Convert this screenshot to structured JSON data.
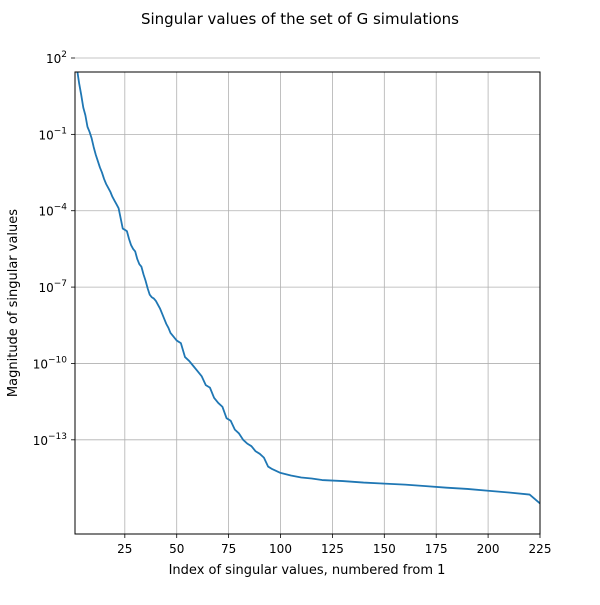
{
  "chart_data": {
    "type": "line",
    "title": "Singular values of the set of G simulations",
    "xlabel": "Index of singular values, numbered from 1",
    "ylabel": "Magnitude of singular values",
    "xlim": [
      1,
      225
    ],
    "ylim_log10": [
      -16.7,
      1.45
    ],
    "y_scale": "log",
    "grid": true,
    "line_color": "#1f77b4",
    "x_ticks": [
      25,
      50,
      75,
      100,
      125,
      150,
      175,
      200,
      225
    ],
    "y_ticks": [
      {
        "exp": 2,
        "base": "10",
        "sup": "2"
      },
      {
        "exp": -1,
        "base": "10",
        "sup": "−1"
      },
      {
        "exp": -4,
        "base": "10",
        "sup": "−4"
      },
      {
        "exp": -7,
        "base": "10",
        "sup": "−7"
      },
      {
        "exp": -10,
        "base": "10",
        "sup": "−10"
      },
      {
        "exp": -13,
        "base": "10",
        "sup": "−13"
      }
    ],
    "series": [
      {
        "x": [
          1,
          2,
          3,
          4,
          5,
          6,
          7,
          8,
          9,
          10,
          11,
          12,
          13,
          14,
          15,
          16,
          17,
          18,
          19,
          20,
          21,
          22,
          23,
          24,
          25,
          26,
          27,
          28,
          29,
          30,
          31,
          32,
          33,
          34,
          35,
          36,
          37,
          38,
          39,
          40,
          41,
          42,
          43,
          44,
          45,
          46,
          47,
          48,
          50,
          52,
          54,
          56,
          58,
          60,
          62,
          64,
          66,
          68,
          70,
          72,
          74,
          76,
          78,
          80,
          82,
          84,
          86,
          88,
          90,
          92,
          94,
          96,
          100,
          105,
          110,
          115,
          120,
          125,
          130,
          140,
          150,
          160,
          170,
          180,
          190,
          200,
          210,
          220,
          225
        ],
        "log10_y": [
          2.1,
          1.55,
          1.0,
          0.55,
          0.05,
          -0.25,
          -0.7,
          -0.9,
          -1.15,
          -1.5,
          -1.8,
          -2.05,
          -2.3,
          -2.5,
          -2.75,
          -2.95,
          -3.1,
          -3.25,
          -3.45,
          -3.6,
          -3.75,
          -3.9,
          -4.3,
          -4.7,
          -4.75,
          -4.8,
          -5.1,
          -5.35,
          -5.5,
          -5.6,
          -5.9,
          -6.1,
          -6.2,
          -6.5,
          -6.75,
          -7.05,
          -7.3,
          -7.4,
          -7.45,
          -7.55,
          -7.7,
          -7.85,
          -8.05,
          -8.25,
          -8.45,
          -8.6,
          -8.8,
          -8.9,
          -9.1,
          -9.2,
          -9.75,
          -9.9,
          -10.1,
          -10.3,
          -10.5,
          -10.85,
          -10.95,
          -11.35,
          -11.55,
          -11.7,
          -12.15,
          -12.25,
          -12.6,
          -12.75,
          -13.0,
          -13.15,
          -13.25,
          -13.45,
          -13.55,
          -13.7,
          -14.05,
          -14.15,
          -14.3,
          -14.4,
          -14.48,
          -14.52,
          -14.58,
          -14.6,
          -14.62,
          -14.68,
          -14.72,
          -14.76,
          -14.82,
          -14.88,
          -14.93,
          -15.0,
          -15.07,
          -15.15,
          -15.5
        ]
      }
    ]
  }
}
